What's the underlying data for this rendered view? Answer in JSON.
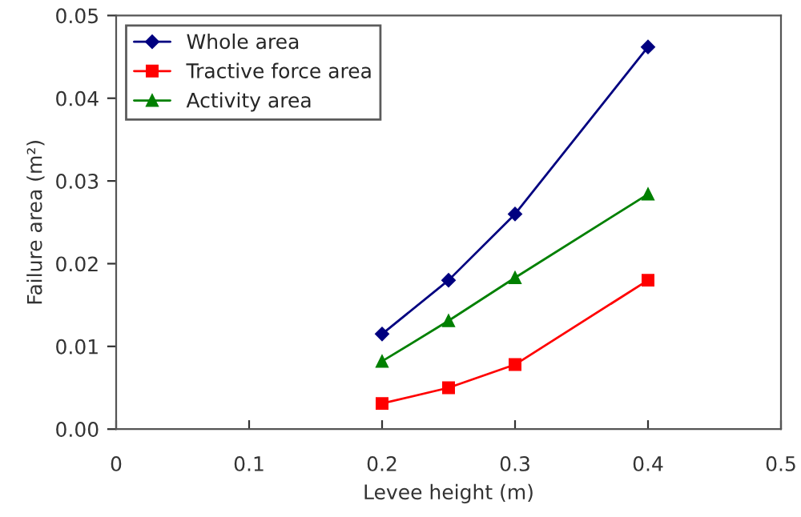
{
  "chart_data": {
    "type": "line",
    "xlabel": "Levee height (m)",
    "ylabel": "Failure area (m²)",
    "x": [
      0.2,
      0.25,
      0.3,
      0.4
    ],
    "series": [
      {
        "name": "Whole area",
        "color": "#000080",
        "marker": "diamond",
        "values": [
          0.0115,
          0.018,
          0.026,
          0.0462
        ]
      },
      {
        "name": "Tractive force area",
        "color": "#ff0000",
        "marker": "square",
        "values": [
          0.0031,
          0.005,
          0.0078,
          0.018
        ]
      },
      {
        "name": "Activity area",
        "color": "#008000",
        "marker": "triangle",
        "values": [
          0.0082,
          0.0131,
          0.0183,
          0.0284
        ]
      }
    ],
    "xlim": [
      0,
      0.5
    ],
    "xticks": [
      0,
      0.1,
      0.2,
      0.3,
      0.4,
      0.5
    ],
    "ylim": [
      0,
      0.05
    ],
    "yticks": [
      {
        "value": 0,
        "label": "0.00"
      },
      {
        "value": 0.01,
        "label": "0.01"
      },
      {
        "value": 0.02,
        "label": "0.02"
      },
      {
        "value": 0.03,
        "label": "0.03"
      },
      {
        "value": 0.04,
        "label": "0.04"
      },
      {
        "value": 0.05,
        "label": "0.05"
      }
    ],
    "grid": false,
    "legend": "top left",
    "line_style": "solid"
  }
}
